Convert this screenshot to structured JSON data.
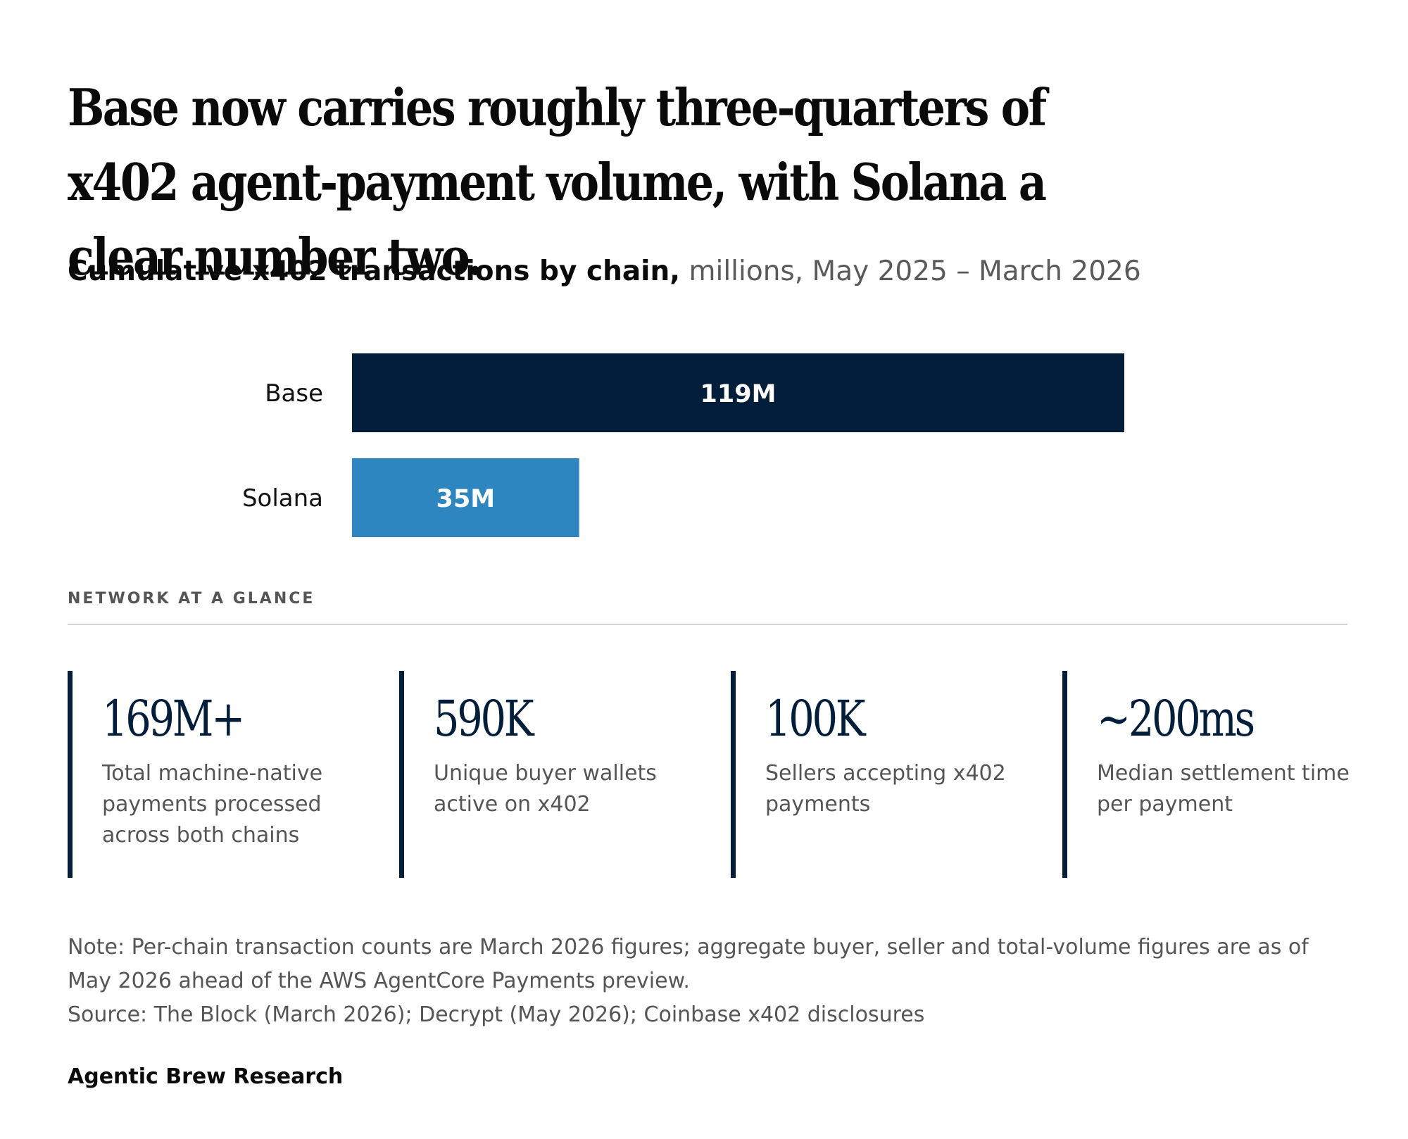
{
  "headline": "Base now carries roughly three-quarters of x402 agent-payment volume, with Solana a clear number two.",
  "subtitle": {
    "bold": "Cumulative x402 transactions by chain,",
    "light": " millions, May 2025 – March 2026"
  },
  "chart_data": {
    "type": "bar",
    "orientation": "horizontal",
    "title": "Cumulative x402 transactions by chain",
    "unit": "millions, May 2025 – March 2026",
    "categories": [
      "Base",
      "Solana"
    ],
    "values": [
      119,
      35
    ],
    "data_labels": [
      "119M",
      "35M"
    ],
    "colors": [
      "#021e3b",
      "#2e86c1"
    ],
    "label_color": "#ffffff",
    "grid": false,
    "xlim": [
      0,
      119
    ]
  },
  "glance": {
    "heading": "NETWORK AT A GLANCE",
    "accent": "#021e3b",
    "stats": [
      {
        "value": "169M+",
        "desc": "Total machine-native payments processed across both chains"
      },
      {
        "value": "590K",
        "desc": "Unique buyer wallets active on x402"
      },
      {
        "value": "100K",
        "desc": "Sellers accepting x402 payments"
      },
      {
        "value": "~200ms",
        "desc": "Median settlement time per payment"
      }
    ]
  },
  "note": "Note: Per-chain transaction counts are March 2026 figures; aggregate buyer, seller and total-volume figures are as of May 2026 ahead of the AWS AgentCore Payments preview.",
  "source": "Source: The Block (March 2026); Decrypt (May 2026); Coinbase x402 disclosures",
  "brand": "Agentic Brew Research"
}
